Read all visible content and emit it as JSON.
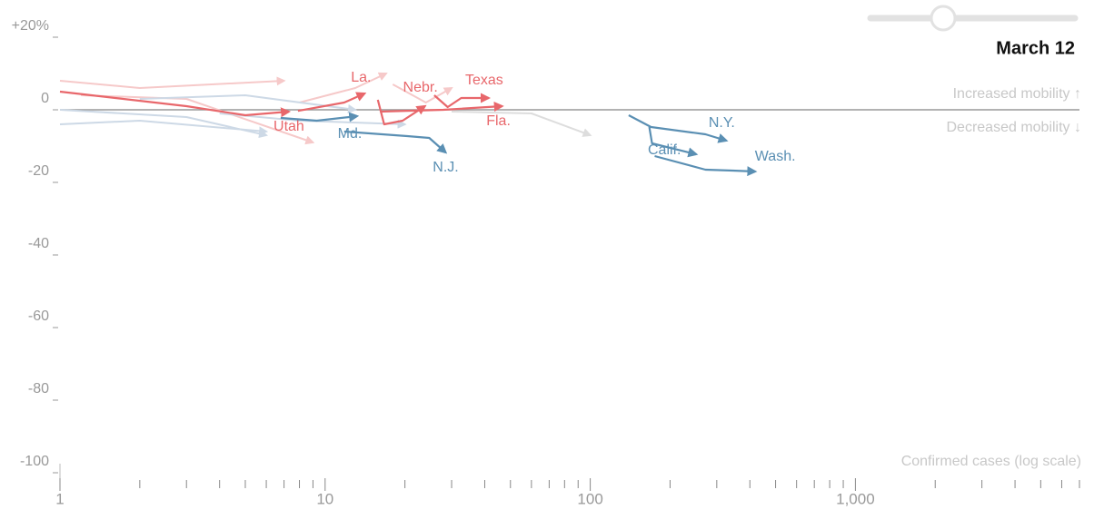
{
  "chart_data": {
    "type": "trajectory",
    "date": "March 12",
    "y_note_up": "Increased mobility ↑",
    "y_note_down": "Decreased mobility ↓",
    "x_label": "Confirmed cases (log scale)",
    "xlog": true,
    "xlim": [
      1,
      7000
    ],
    "ylim": [
      -100,
      20
    ],
    "xticks": [
      1,
      10,
      100,
      {
        "value": 1000,
        "label": "1,000"
      }
    ],
    "xminorticks": [
      2,
      3,
      4,
      5,
      6,
      7,
      8,
      9,
      20,
      30,
      40,
      50,
      60,
      70,
      80,
      90,
      200,
      300,
      400,
      500,
      600,
      700,
      800,
      900,
      2000,
      3000,
      4000,
      5000,
      6000,
      7000
    ],
    "yticks": [
      {
        "value": 20,
        "label": "+20%"
      },
      0,
      -20,
      -40,
      -60,
      -80,
      -100
    ],
    "background_series": [
      {
        "color": "#f6c9c9",
        "x": [
          1,
          2,
          7
        ],
        "values": [
          8,
          6,
          8
        ]
      },
      {
        "color": "#f6c9c9",
        "x": [
          1.2,
          3,
          9
        ],
        "values": [
          4,
          3,
          -9
        ]
      },
      {
        "color": "#f6c9c9",
        "x": [
          8,
          13,
          17
        ],
        "values": [
          2,
          6,
          10
        ]
      },
      {
        "color": "#f6c9c9",
        "x": [
          18,
          24,
          30
        ],
        "values": [
          7,
          2,
          6
        ]
      },
      {
        "color": "#cdd9e6",
        "x": [
          1,
          2,
          6
        ],
        "values": [
          -4,
          -3,
          -6
        ]
      },
      {
        "color": "#cdd9e6",
        "x": [
          2,
          5,
          13
        ],
        "values": [
          3,
          4,
          0
        ]
      },
      {
        "color": "#cdd9e6",
        "x": [
          1,
          3,
          6
        ],
        "values": [
          0,
          -2,
          -7
        ]
      },
      {
        "color": "#dddddd",
        "x": [
          30,
          60,
          100
        ],
        "values": [
          -0.5,
          -1,
          -7
        ]
      },
      {
        "color": "#cdd9e6",
        "x": [
          4,
          8,
          20
        ],
        "values": [
          -1,
          -3,
          -4
        ]
      }
    ],
    "series": [
      {
        "name": "Utah",
        "color": "#e8676b",
        "x": [
          1,
          3,
          5,
          7.3
        ],
        "values": [
          5,
          1,
          -1.5,
          -0.5
        ]
      },
      {
        "name": "La.",
        "color": "#e8676b",
        "x": [
          7.9,
          11.8,
          14.1
        ],
        "values": [
          -0.3,
          2,
          4.5
        ]
      },
      {
        "name": "Nebr.",
        "color": "#e8676b",
        "x": [
          15.8,
          16.7,
          19.6,
          23.8
        ],
        "values": [
          2.75,
          -4,
          -3,
          1
        ]
      },
      {
        "name": "Texas",
        "color": "#e8676b",
        "x": [
          25.8,
          29,
          32.6,
          41.4
        ],
        "values": [
          4,
          0.75,
          3.25,
          3.25
        ]
      },
      {
        "name": "Fla.",
        "color": "#e8676b",
        "x": [
          16.1,
          27.9,
          46.5
        ],
        "values": [
          -0.5,
          0,
          1
        ]
      },
      {
        "name": "Md.",
        "color": "#5a8fb3",
        "x": [
          6.8,
          9.3,
          13.2
        ],
        "values": [
          -2.25,
          -3,
          -1.75
        ]
      },
      {
        "name": "N.J.",
        "color": "#5a8fb3",
        "x": [
          11.8,
          20.4,
          24.7,
          28.5
        ],
        "values": [
          -6,
          -7.25,
          -7.75,
          -11.75
        ]
      },
      {
        "name": "N.Y.",
        "color": "#5a8fb3",
        "x": [
          139.6,
          169.6,
          272,
          326
        ],
        "values": [
          -1.5,
          -4.75,
          -6.75,
          -8.5
        ]
      },
      {
        "name": "Calif.",
        "color": "#5a8fb3",
        "x": [
          167,
          171,
          251
        ],
        "values": [
          -4.75,
          -9.25,
          -12.25
        ]
      },
      {
        "name": "Wash.",
        "color": "#5a8fb3",
        "x": [
          175,
          272,
          344,
          419
        ],
        "values": [
          -12.75,
          -16.5,
          -16.75,
          -17
        ]
      }
    ]
  }
}
